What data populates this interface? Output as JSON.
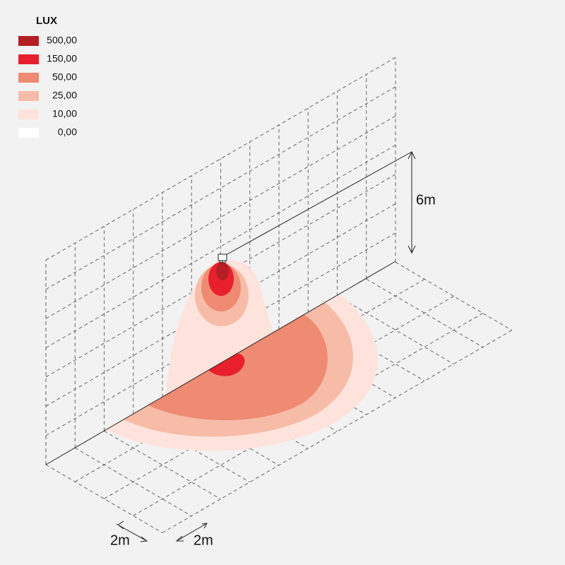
{
  "legend": {
    "title": "LUX",
    "items": [
      {
        "label": "500,00",
        "color": "#b31f24"
      },
      {
        "label": "150,00",
        "color": "#e8202e"
      },
      {
        "label": "50,00",
        "color": "#ef8a73"
      },
      {
        "label": "25,00",
        "color": "#f6bca8"
      },
      {
        "label": "10,00",
        "color": "#fde3dc"
      },
      {
        "label": "0,00",
        "color": "#ffffff"
      }
    ]
  },
  "dimensions": {
    "height": "6m",
    "grid_x": "2m",
    "grid_y": "2m"
  }
}
